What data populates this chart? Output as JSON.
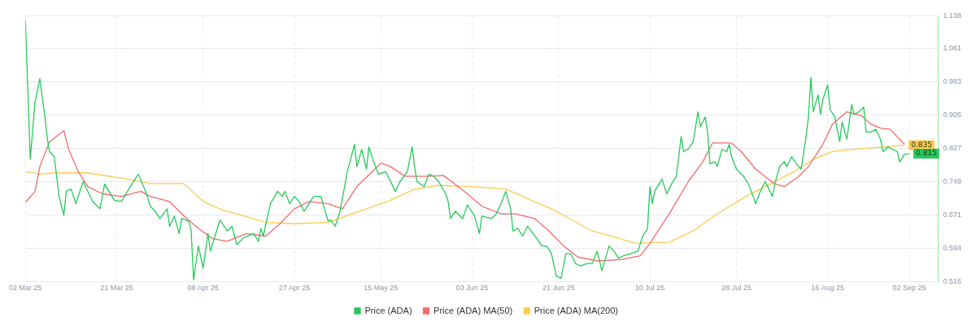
{
  "chart_data": {
    "type": "line",
    "xlim": [
      "2025-03-02",
      "2025-09-08"
    ],
    "ylim": [
      0.516,
      1.138
    ],
    "xticks": [
      {
        "value": "2025-03-02",
        "label": "02 Mar 25"
      },
      {
        "value": "2025-03-21",
        "label": "21 Mar 25"
      },
      {
        "value": "2025-04-08",
        "label": "08 Apr 25"
      },
      {
        "value": "2025-04-27",
        "label": "27 Apr 25"
      },
      {
        "value": "2025-05-15",
        "label": "15 May 25"
      },
      {
        "value": "2025-06-03",
        "label": "03 Jun 25"
      },
      {
        "value": "2025-06-21",
        "label": "21 Jun 25"
      },
      {
        "value": "2025-07-10",
        "label": "10 Jul 25"
      },
      {
        "value": "2025-07-28",
        "label": "28 Jul 25"
      },
      {
        "value": "2025-08-16",
        "label": "16 Aug 25"
      },
      {
        "value": "2025-09-02",
        "label": "02 Sep 25"
      }
    ],
    "yticks": [
      0.516,
      0.594,
      0.671,
      0.749,
      0.827,
      0.905,
      0.983,
      1.061,
      1.138
    ],
    "grid": true,
    "legend": "bottom",
    "marker": "none",
    "line_style": "solid",
    "annotations": [
      {
        "text": "0.835",
        "x": "2025-09-01",
        "y": 0.835
      },
      {
        "text": "0.815",
        "x": "2025-09-02",
        "y": 0.815
      }
    ],
    "series": [
      {
        "name": "Price (ADA)",
        "color": "#26c95a",
        "x": [
          "2025-03-02",
          "2025-03-02T12:00",
          "2025-03-03",
          "2025-03-04",
          "2025-03-05",
          "2025-03-05T12:00",
          "2025-03-06",
          "2025-03-06T12:00",
          "2025-03-07",
          "2025-03-08",
          "2025-03-09",
          "2025-03-10",
          "2025-03-10T12:00",
          "2025-03-11T12:00",
          "2025-03-12T12:00",
          "2025-03-14",
          "2025-03-16",
          "2025-03-17T12:00",
          "2025-03-18T12:00",
          "2025-03-20T12:00",
          "2025-03-22",
          "2025-03-23T12:00",
          "2025-03-25T12:00",
          "2025-03-27",
          "2025-03-28",
          "2025-03-29",
          "2025-03-30",
          "2025-03-31T12:00",
          "2025-04-01",
          "2025-04-02",
          "2025-04-03",
          "2025-04-03T12:00",
          "2025-04-05",
          "2025-04-05T12:00",
          "2025-04-06",
          "2025-04-07",
          "2025-04-08",
          "2025-04-09",
          "2025-04-09T12:00",
          "2025-04-11T12:00",
          "2025-04-13",
          "2025-04-14",
          "2025-04-15",
          "2025-04-16T12:00",
          "2025-04-18T12:00",
          "2025-04-19T12:00",
          "2025-04-20",
          "2025-04-20T12:00",
          "2025-04-22",
          "2025-04-23T12:00",
          "2025-04-24T12:00",
          "2025-04-25",
          "2025-04-26",
          "2025-04-27",
          "2025-04-28",
          "2025-04-29",
          "2025-05-01",
          "2025-05-02T12:00",
          "2025-05-04",
          "2025-05-04T12:00",
          "2025-05-05T12:00",
          "2025-05-06T12:00",
          "2025-05-08",
          "2025-05-09T12:00",
          "2025-05-10",
          "2025-05-11",
          "2025-05-12",
          "2025-05-12T12:00",
          "2025-05-13T12:00",
          "2025-05-14T12:00",
          "2025-05-16",
          "2025-05-17",
          "2025-05-18",
          "2025-05-19",
          "2025-05-20T12:00",
          "2025-05-21T12:00",
          "2025-05-22",
          "2025-05-22T12:00",
          "2025-05-24",
          "2025-05-25",
          "2025-05-26",
          "2025-05-27",
          "2025-05-28T12:00",
          "2025-05-29",
          "2025-05-29T12:00",
          "2025-05-30T12:00",
          "2025-06-01",
          "2025-06-02",
          "2025-06-03T12:00",
          "2025-06-04T12:00",
          "2025-06-05",
          "2025-06-07",
          "2025-06-08",
          "2025-06-09",
          "2025-06-10",
          "2025-06-11",
          "2025-06-11T12:00",
          "2025-06-12T12:00",
          "2025-06-13T12:00",
          "2025-06-14T12:00",
          "2025-06-16T12:00",
          "2025-06-17T12:00",
          "2025-06-18T12:00",
          "2025-06-19T12:00",
          "2025-06-20T12:00",
          "2025-06-21T12:00",
          "2025-06-22T12:00",
          "2025-06-23T12:00",
          "2025-06-24T12:00",
          "2025-06-25T12:00",
          "2025-06-27",
          "2025-06-28",
          "2025-06-29",
          "2025-06-30",
          "2025-07-01T12:00",
          "2025-07-02T12:00",
          "2025-07-03T12:00",
          "2025-07-04T12:00",
          "2025-07-06",
          "2025-07-07T12:00",
          "2025-07-08T12:00",
          "2025-07-09T12:00",
          "2025-07-10",
          "2025-07-10T12:00",
          "2025-07-11",
          "2025-07-12T12:00",
          "2025-07-13T12:00",
          "2025-07-14T12:00",
          "2025-07-15T12:00",
          "2025-07-16T12:00",
          "2025-07-17",
          "2025-07-18",
          "2025-07-19",
          "2025-07-20",
          "2025-07-20T12:00",
          "2025-07-21T12:00",
          "2025-07-22",
          "2025-07-22T12:00",
          "2025-07-23T12:00",
          "2025-07-24",
          "2025-07-25",
          "2025-07-26",
          "2025-07-26T12:00",
          "2025-07-27",
          "2025-07-28",
          "2025-07-29T12:00",
          "2025-07-30T12:00",
          "2025-07-31T12:00",
          "2025-08-01",
          "2025-08-02",
          "2025-08-03",
          "2025-08-04T12:00",
          "2025-08-05",
          "2025-08-06",
          "2025-08-07",
          "2025-08-07T12:00",
          "2025-08-08T12:00",
          "2025-08-09T12:00",
          "2025-08-10T12:00",
          "2025-08-11T12:00",
          "2025-08-12",
          "2025-08-12T12:00",
          "2025-08-13",
          "2025-08-14",
          "2025-08-14T12:00",
          "2025-08-15",
          "2025-08-16",
          "2025-08-16T12:00",
          "2025-08-17T12:00",
          "2025-08-18T12:00",
          "2025-08-19",
          "2025-08-20",
          "2025-08-21",
          "2025-08-21T12:00",
          "2025-08-22T12:00",
          "2025-08-23T12:00",
          "2025-08-24",
          "2025-08-25",
          "2025-08-26",
          "2025-08-27",
          "2025-08-27T12:00",
          "2025-08-28T12:00",
          "2025-08-29T12:00",
          "2025-08-30T12:00",
          "2025-08-31",
          "2025-09-01",
          "2025-09-02"
        ],
        "values": [
          1.128,
          0.965,
          0.802,
          0.936,
          0.991,
          0.947,
          0.907,
          0.855,
          0.82,
          0.808,
          0.715,
          0.671,
          0.727,
          0.732,
          0.698,
          0.75,
          0.703,
          0.686,
          0.744,
          0.706,
          0.703,
          0.732,
          0.767,
          0.727,
          0.692,
          0.68,
          0.663,
          0.686,
          0.645,
          0.669,
          0.628,
          0.663,
          0.657,
          0.634,
          0.52,
          0.599,
          0.547,
          0.628,
          0.587,
          0.66,
          0.634,
          0.645,
          0.602,
          0.619,
          0.628,
          0.61,
          0.64,
          0.622,
          0.698,
          0.727,
          0.715,
          0.727,
          0.698,
          0.715,
          0.703,
          0.68,
          0.715,
          0.715,
          0.657,
          0.66,
          0.645,
          0.68,
          0.773,
          0.837,
          0.785,
          0.825,
          0.779,
          0.831,
          0.796,
          0.767,
          0.773,
          0.75,
          0.727,
          0.75,
          0.773,
          0.831,
          0.785,
          0.75,
          0.738,
          0.767,
          0.762,
          0.75,
          0.721,
          0.703,
          0.663,
          0.68,
          0.663,
          0.695,
          0.669,
          0.628,
          0.669,
          0.663,
          0.674,
          0.698,
          0.727,
          0.686,
          0.634,
          0.64,
          0.622,
          0.645,
          0.616,
          0.599,
          0.599,
          0.581,
          0.529,
          0.523,
          0.581,
          0.581,
          0.558,
          0.552,
          0.558,
          0.558,
          0.587,
          0.541,
          0.599,
          0.587,
          0.57,
          0.576,
          0.581,
          0.587,
          0.622,
          0.64,
          0.738,
          0.698,
          0.727,
          0.756,
          0.721,
          0.744,
          0.762,
          0.855,
          0.82,
          0.826,
          0.843,
          0.913,
          0.878,
          0.901,
          0.866,
          0.791,
          0.796,
          0.785,
          0.825,
          0.82,
          0.837,
          0.808,
          0.779,
          0.762,
          0.744,
          0.715,
          0.698,
          0.727,
          0.75,
          0.715,
          0.744,
          0.785,
          0.796,
          0.785,
          0.808,
          0.791,
          0.779,
          0.855,
          0.901,
          0.994,
          0.913,
          0.953,
          0.907,
          0.942,
          0.976,
          0.918,
          0.901,
          0.843,
          0.889,
          0.849,
          0.93,
          0.907,
          0.913,
          0.924,
          0.866,
          0.866,
          0.872,
          0.849,
          0.82,
          0.831,
          0.825,
          0.82,
          0.796,
          0.814,
          0.815
        ]
      },
      {
        "name": "Price (ADA) MA(50)",
        "color": "#f26b6b",
        "x": [
          "2025-03-02",
          "2025-03-04",
          "2025-03-05",
          "2025-03-07",
          "2025-03-10",
          "2025-03-11",
          "2025-03-13",
          "2025-03-15",
          "2025-03-18",
          "2025-03-22",
          "2025-03-26",
          "2025-03-28",
          "2025-04-01",
          "2025-04-04",
          "2025-04-07",
          "2025-04-10",
          "2025-04-13",
          "2025-04-17",
          "2025-04-21",
          "2025-04-24",
          "2025-04-27",
          "2025-04-30",
          "2025-05-04",
          "2025-05-07",
          "2025-05-10",
          "2025-05-15",
          "2025-05-17",
          "2025-05-20",
          "2025-05-25",
          "2025-05-28",
          "2025-05-29",
          "2025-06-02",
          "2025-06-05",
          "2025-06-09",
          "2025-06-12",
          "2025-06-16",
          "2025-06-19",
          "2025-06-22",
          "2025-06-25",
          "2025-06-29",
          "2025-07-04",
          "2025-07-08",
          "2025-07-10",
          "2025-07-14",
          "2025-07-18",
          "2025-07-21",
          "2025-07-23",
          "2025-07-27",
          "2025-07-29",
          "2025-08-01",
          "2025-08-05",
          "2025-08-07",
          "2025-08-10",
          "2025-08-12",
          "2025-08-15",
          "2025-08-17",
          "2025-08-20",
          "2025-08-23",
          "2025-08-25",
          "2025-08-27",
          "2025-08-29",
          "2025-09-01"
        ],
        "values": [
          0.701,
          0.727,
          0.785,
          0.843,
          0.869,
          0.825,
          0.773,
          0.738,
          0.721,
          0.715,
          0.727,
          0.715,
          0.703,
          0.669,
          0.64,
          0.616,
          0.61,
          0.628,
          0.622,
          0.651,
          0.686,
          0.703,
          0.698,
          0.686,
          0.738,
          0.793,
          0.785,
          0.762,
          0.762,
          0.764,
          0.756,
          0.721,
          0.692,
          0.674,
          0.674,
          0.663,
          0.634,
          0.599,
          0.573,
          0.564,
          0.567,
          0.576,
          0.605,
          0.674,
          0.75,
          0.796,
          0.84,
          0.84,
          0.82,
          0.779,
          0.744,
          0.738,
          0.762,
          0.785,
          0.837,
          0.884,
          0.913,
          0.904,
          0.884,
          0.875,
          0.872,
          0.837
        ]
      },
      {
        "name": "Price (ADA) MA(200)",
        "color": "#ffc94d",
        "x": [
          "2025-03-02",
          "2025-03-05",
          "2025-03-08",
          "2025-03-15",
          "2025-03-23",
          "2025-03-28",
          "2025-04-04",
          "2025-04-08",
          "2025-04-12",
          "2025-04-15",
          "2025-04-21",
          "2025-04-27",
          "2025-05-04",
          "2025-05-12",
          "2025-05-17",
          "2025-05-22",
          "2025-05-27",
          "2025-06-03",
          "2025-06-10",
          "2025-06-20",
          "2025-06-28",
          "2025-07-01",
          "2025-07-07",
          "2025-07-14",
          "2025-07-19",
          "2025-07-24",
          "2025-07-30",
          "2025-08-04",
          "2025-08-09",
          "2025-08-13",
          "2025-08-17",
          "2025-08-23",
          "2025-08-28",
          "2025-09-01"
        ],
        "values": [
          0.773,
          0.767,
          0.77,
          0.77,
          0.756,
          0.745,
          0.745,
          0.703,
          0.683,
          0.674,
          0.654,
          0.651,
          0.654,
          0.686,
          0.706,
          0.732,
          0.741,
          0.738,
          0.732,
          0.683,
          0.634,
          0.625,
          0.605,
          0.608,
          0.634,
          0.674,
          0.715,
          0.744,
          0.773,
          0.802,
          0.82,
          0.827,
          0.831,
          0.835
        ]
      }
    ]
  }
}
